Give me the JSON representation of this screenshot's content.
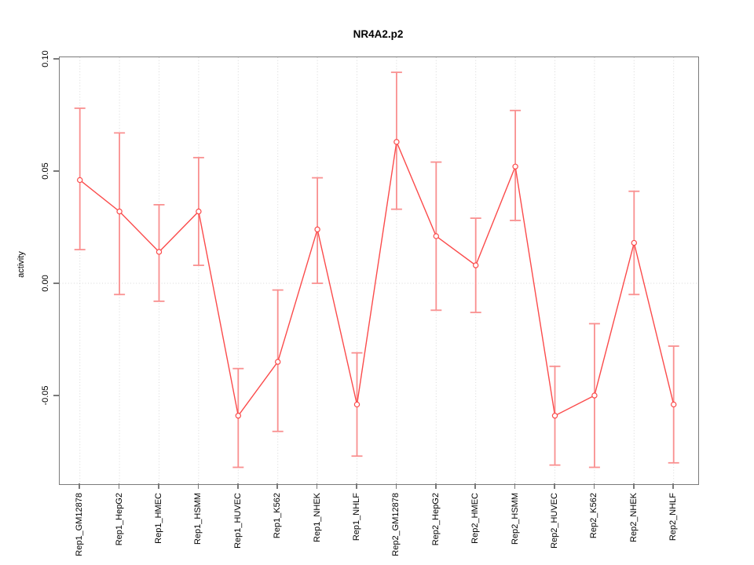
{
  "title": "NR4A2.p2",
  "y_axis": {
    "label": "activity",
    "tick_labels": [
      "0.10",
      "0.05",
      "0.00",
      "-0.05"
    ],
    "tick_values": [
      0.1,
      0.05,
      0.0,
      -0.05
    ]
  },
  "x_axis": {
    "tick_labels": [
      "Rep1_GM12878",
      "Rep1_HepG2",
      "Rep1_HMEC",
      "Rep1_HSMM",
      "Rep1_HUVEC",
      "Rep1_K562",
      "Rep1_NHEK",
      "Rep1_NHLF",
      "Rep2_GM12878",
      "Rep2_HepG2",
      "Rep2_HMEC",
      "Rep2_HSMM",
      "Rep2_HUVEC",
      "Rep2_K562",
      "Rep2_NHEK",
      "Rep2_NHLF"
    ]
  },
  "chart_data": {
    "type": "line",
    "title": "NR4A2.p2",
    "xlabel": "",
    "ylabel": "activity",
    "categories": [
      "Rep1_GM12878",
      "Rep1_HepG2",
      "Rep1_HMEC",
      "Rep1_HSMM",
      "Rep1_HUVEC",
      "Rep1_K562",
      "Rep1_NHEK",
      "Rep1_NHLF",
      "Rep2_GM12878",
      "Rep2_HepG2",
      "Rep2_HMEC",
      "Rep2_HSMM",
      "Rep2_HUVEC",
      "Rep2_K562",
      "Rep2_NHEK",
      "Rep2_NHLF"
    ],
    "series": [
      {
        "name": "activity",
        "marker": "open-circle",
        "values": [
          0.046,
          0.032,
          0.014,
          0.032,
          -0.059,
          -0.035,
          0.024,
          -0.054,
          0.063,
          0.021,
          0.008,
          0.052,
          -0.059,
          -0.05,
          0.018,
          -0.054
        ],
        "error_low": [
          0.015,
          -0.005,
          -0.008,
          0.008,
          -0.082,
          -0.066,
          0.0,
          -0.077,
          0.033,
          -0.012,
          -0.013,
          0.028,
          -0.081,
          -0.082,
          -0.005,
          -0.08
        ],
        "error_high": [
          0.078,
          0.067,
          0.035,
          0.056,
          -0.038,
          -0.003,
          0.047,
          -0.031,
          0.094,
          0.054,
          0.029,
          0.077,
          -0.037,
          -0.018,
          0.041,
          -0.028
        ]
      }
    ],
    "ylim": [
      -0.089,
      0.101
    ],
    "yticks": [
      0.1,
      0.05,
      0.0,
      -0.05
    ],
    "ytick_labels": [
      "0.10",
      "0.05",
      "0.00",
      "-0.05"
    ],
    "grid": {
      "vertical": "dotted line at every category",
      "horizontal": "dotted line at y=0"
    },
    "legend": "none",
    "colors": {
      "line": "#fb4b4b",
      "marker_stroke": "#fb4b4b",
      "marker_fill": "#ffffff",
      "error_bar": "#f99090",
      "grid": "#d8d8d8",
      "axis_box": "#7a7a7a",
      "text": "#000000",
      "background": "#ffffff"
    }
  }
}
